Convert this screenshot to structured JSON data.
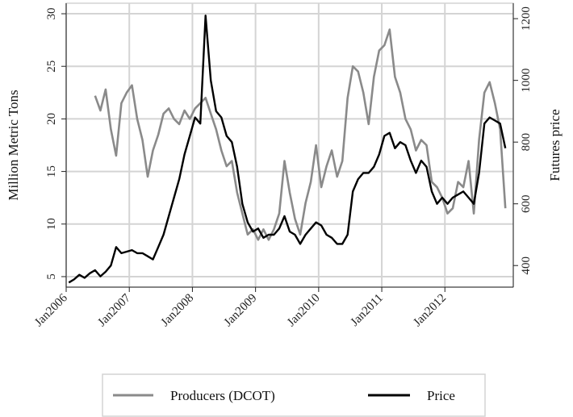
{
  "chart_data": {
    "type": "line",
    "ylabel": "Million Metric Tons",
    "y2label": "Futures price",
    "x_ticks": [
      "Jan2006",
      "Jan2007",
      "Jan2008",
      "Jan2009",
      "Jan2010",
      "Jan2011",
      "Jan2012"
    ],
    "xlim": [
      "2006-01",
      "2013-02"
    ],
    "ylim": [
      4,
      31
    ],
    "y_ticks": [
      "5",
      "10",
      "15",
      "20",
      "25",
      "30"
    ],
    "y2lim": [
      330,
      1250
    ],
    "y2_ticks": [
      "400",
      "600",
      "800",
      "1000",
      "1200"
    ],
    "grid": true,
    "legend_position": "bottom",
    "series": [
      {
        "name": "Producers (DCOT)",
        "axis": "left",
        "color": "#8a8a8a",
        "x": [
          "2006-06",
          "2006-07",
          "2006-08",
          "2006-09",
          "2006-10",
          "2006-11",
          "2006-12",
          "2007-01",
          "2007-02",
          "2007-03",
          "2007-04",
          "2007-05",
          "2007-06",
          "2007-07",
          "2007-08",
          "2007-09",
          "2007-10",
          "2007-11",
          "2007-12",
          "2008-01",
          "2008-02",
          "2008-03",
          "2008-04",
          "2008-05",
          "2008-06",
          "2008-07",
          "2008-08",
          "2008-09",
          "2008-10",
          "2008-11",
          "2008-12",
          "2009-01",
          "2009-02",
          "2009-03",
          "2009-04",
          "2009-05",
          "2009-06",
          "2009-07",
          "2009-08",
          "2009-09",
          "2009-10",
          "2009-11",
          "2009-12",
          "2010-01",
          "2010-02",
          "2010-03",
          "2010-04",
          "2010-05",
          "2010-06",
          "2010-07",
          "2010-08",
          "2010-09",
          "2010-10",
          "2010-11",
          "2010-12",
          "2011-01",
          "2011-02",
          "2011-03",
          "2011-04",
          "2011-05",
          "2011-06",
          "2011-07",
          "2011-08",
          "2011-09",
          "2011-10",
          "2011-11",
          "2011-12",
          "2012-01",
          "2012-02",
          "2012-03",
          "2012-04",
          "2012-05",
          "2012-06",
          "2012-07",
          "2012-08",
          "2012-09",
          "2012-10",
          "2012-11",
          "2012-12"
        ],
        "values": [
          22.2,
          20.8,
          22.8,
          19.0,
          16.5,
          21.5,
          22.5,
          23.2,
          20.0,
          18.0,
          14.5,
          17.0,
          18.5,
          20.5,
          21.0,
          20.0,
          19.5,
          20.8,
          20.0,
          21.0,
          21.5,
          22.0,
          20.5,
          19.0,
          17.0,
          15.5,
          16.0,
          13.0,
          11.0,
          9.0,
          9.5,
          8.5,
          9.5,
          8.5,
          9.5,
          11.0,
          16.0,
          13.0,
          10.5,
          9.0,
          12.0,
          14.0,
          17.5,
          13.5,
          15.5,
          17.0,
          14.5,
          16.0,
          22.0,
          25.0,
          24.5,
          22.5,
          19.5,
          24.0,
          26.5,
          27.0,
          28.5,
          24.0,
          22.5,
          20.0,
          19.0,
          17.0,
          18.0,
          17.5,
          14.0,
          13.5,
          12.5,
          11.0,
          11.5,
          14.0,
          13.5,
          16.0,
          11.0,
          18.0,
          22.5,
          23.5,
          21.5,
          19.0,
          11.5
        ]
      },
      {
        "name": "Price",
        "axis": "right",
        "color": "#000000",
        "x": [
          "2006-01",
          "2006-02",
          "2006-03",
          "2006-04",
          "2006-05",
          "2006-06",
          "2006-07",
          "2006-08",
          "2006-09",
          "2006-10",
          "2006-11",
          "2006-12",
          "2007-01",
          "2007-02",
          "2007-03",
          "2007-04",
          "2007-05",
          "2007-06",
          "2007-07",
          "2007-08",
          "2007-09",
          "2007-10",
          "2007-11",
          "2007-12",
          "2008-01",
          "2008-02",
          "2008-03",
          "2008-04",
          "2008-05",
          "2008-06",
          "2008-07",
          "2008-08",
          "2008-09",
          "2008-10",
          "2008-11",
          "2008-12",
          "2009-01",
          "2009-02",
          "2009-03",
          "2009-04",
          "2009-05",
          "2009-06",
          "2009-07",
          "2009-08",
          "2009-09",
          "2009-10",
          "2009-11",
          "2009-12",
          "2010-01",
          "2010-02",
          "2010-03",
          "2010-04",
          "2010-05",
          "2010-06",
          "2010-07",
          "2010-08",
          "2010-09",
          "2010-10",
          "2010-11",
          "2010-12",
          "2011-01",
          "2011-02",
          "2011-03",
          "2011-04",
          "2011-05",
          "2011-06",
          "2011-07",
          "2011-08",
          "2011-09",
          "2011-10",
          "2011-11",
          "2011-12",
          "2012-01",
          "2012-02",
          "2012-03",
          "2012-04",
          "2012-05",
          "2012-06",
          "2012-07",
          "2012-08",
          "2012-09",
          "2012-10",
          "2012-11",
          "2012-12"
        ],
        "values": [
          345,
          355,
          370,
          360,
          375,
          385,
          365,
          380,
          400,
          460,
          440,
          445,
          450,
          440,
          440,
          430,
          420,
          460,
          500,
          560,
          620,
          680,
          760,
          820,
          880,
          860,
          1210,
          1000,
          900,
          880,
          820,
          800,
          720,
          600,
          540,
          510,
          520,
          490,
          500,
          500,
          520,
          560,
          510,
          500,
          470,
          500,
          520,
          540,
          530,
          500,
          490,
          470,
          470,
          500,
          640,
          680,
          700,
          700,
          720,
          760,
          820,
          830,
          780,
          800,
          790,
          740,
          700,
          740,
          720,
          640,
          600,
          620,
          600,
          620,
          630,
          640,
          620,
          600,
          700,
          860,
          880,
          870,
          860,
          780
        ]
      }
    ]
  }
}
